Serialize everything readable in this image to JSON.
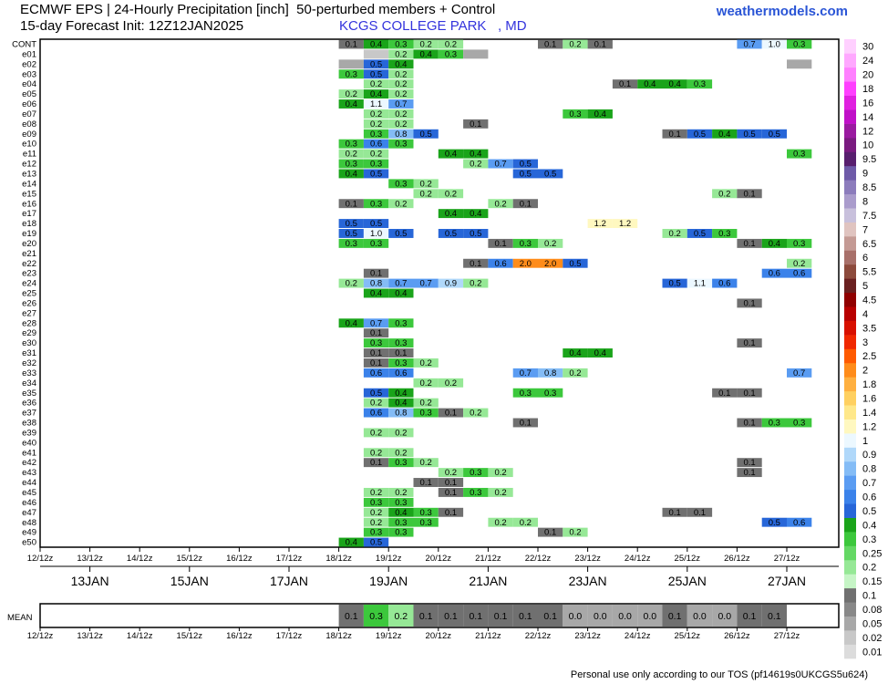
{
  "header": {
    "title_line1": "ECMWF EPS | 24-Hourly Precipitation [inch]  50-perturbed members + Control",
    "title_line2": "15-day Forecast Init: 12Z12JAN2025",
    "location": "KCGS COLLEGE PARK   , MD",
    "brand": "weathermodels.com"
  },
  "footer": "Personal use only according to our TOS (pf14619s0UKCGS5u624)",
  "chart_data": {
    "type": "heatmap",
    "title": "ECMWF EPS | 24-Hourly Precipitation [inch]  50-perturbed members + Control",
    "unit": "inch",
    "rows": [
      "CONT",
      "e01",
      "e02",
      "e03",
      "e04",
      "e05",
      "e06",
      "e07",
      "e08",
      "e09",
      "e10",
      "e11",
      "e12",
      "e13",
      "e14",
      "e15",
      "e16",
      "e17",
      "e18",
      "e19",
      "e20",
      "e21",
      "e22",
      "e23",
      "e24",
      "e25",
      "e26",
      "e27",
      "e28",
      "e29",
      "e30",
      "e31",
      "e32",
      "e33",
      "e34",
      "e35",
      "e36",
      "e37",
      "e38",
      "e39",
      "e40",
      "e41",
      "e42",
      "e43",
      "e44",
      "e45",
      "e46",
      "e47",
      "e48",
      "e49",
      "e50"
    ],
    "x_tick_labels": [
      "12/12z",
      "13/12z",
      "14/12z",
      "15/12z",
      "16/12z",
      "17/12z",
      "18/12z",
      "19/12z",
      "20/12z",
      "21/12z",
      "22/12z",
      "23/12z",
      "24/12z",
      "25/12z",
      "26/12z",
      "27/12z"
    ],
    "date_labels": [
      "13JAN",
      "15JAN",
      "17JAN",
      "19JAN",
      "21JAN",
      "23JAN",
      "25JAN",
      "27JAN"
    ],
    "time_step": "12h",
    "cells_note": "each cell: [row_index, time_index(0=12/12z, step 12h), value_inch, printed_label]",
    "cells": [
      [
        0,
        12.5,
        0.1,
        "0.1"
      ],
      [
        0,
        13.5,
        0.4,
        "0.4"
      ],
      [
        0,
        14.5,
        0.3,
        "0.3"
      ],
      [
        0,
        15.5,
        0.2,
        "0.2"
      ],
      [
        0,
        16.5,
        0.2,
        "0.2"
      ],
      [
        0,
        20.5,
        0.1,
        "0.1"
      ],
      [
        0,
        21.5,
        0.2,
        "0.2"
      ],
      [
        0,
        22.5,
        0.1,
        "0.1"
      ],
      [
        0,
        28.5,
        0.7,
        "0.7"
      ],
      [
        0,
        29.5,
        1.0,
        "1.0"
      ],
      [
        0,
        30.5,
        0.3,
        "0.3"
      ],
      [
        1,
        13.5,
        0.02,
        ""
      ],
      [
        1,
        14.5,
        0.2,
        "0.2"
      ],
      [
        1,
        15.5,
        0.4,
        "0.4"
      ],
      [
        1,
        16.5,
        0.3,
        "0.3"
      ],
      [
        1,
        17.5,
        0.05,
        ""
      ],
      [
        2,
        12.5,
        0.05,
        ""
      ],
      [
        2,
        13.5,
        0.5,
        "0.5"
      ],
      [
        2,
        14.5,
        0.4,
        "0.4"
      ],
      [
        2,
        30.5,
        0.06,
        ""
      ],
      [
        3,
        12.5,
        0.3,
        "0.3"
      ],
      [
        3,
        13.5,
        0.5,
        "0.5"
      ],
      [
        3,
        14.5,
        0.2,
        "0.2"
      ],
      [
        4,
        13.5,
        0.2,
        "0.2"
      ],
      [
        4,
        14.5,
        0.2,
        "0.2"
      ],
      [
        4,
        23.5,
        0.1,
        "0.1"
      ],
      [
        4,
        24.5,
        0.4,
        "0.4"
      ],
      [
        4,
        25.5,
        0.4,
        "0.4"
      ],
      [
        4,
        26.5,
        0.3,
        "0.3"
      ],
      [
        5,
        12.5,
        0.2,
        "0.2"
      ],
      [
        5,
        13.5,
        0.4,
        "0.4"
      ],
      [
        5,
        14.5,
        0.2,
        "0.2"
      ],
      [
        6,
        12.5,
        0.4,
        "0.4"
      ],
      [
        6,
        13.5,
        1.1,
        "1.1"
      ],
      [
        6,
        14.5,
        0.7,
        "0.7"
      ],
      [
        7,
        13.5,
        0.2,
        "0.2"
      ],
      [
        7,
        14.5,
        0.2,
        "0.2"
      ],
      [
        7,
        21.5,
        0.3,
        "0.3"
      ],
      [
        7,
        22.5,
        0.4,
        "0.4"
      ],
      [
        8,
        13.5,
        0.2,
        "0.2"
      ],
      [
        8,
        14.5,
        0.2,
        "0.2"
      ],
      [
        8,
        17.5,
        0.1,
        "0.1"
      ],
      [
        9,
        13.5,
        0.3,
        "0.3"
      ],
      [
        9,
        14.5,
        0.8,
        "0.8"
      ],
      [
        9,
        15.5,
        0.5,
        "0.5"
      ],
      [
        9,
        25.5,
        0.1,
        "0.1"
      ],
      [
        9,
        26.5,
        0.5,
        "0.5"
      ],
      [
        9,
        27.5,
        0.4,
        "0.4"
      ],
      [
        9,
        28.5,
        0.5,
        "0.5"
      ],
      [
        9,
        29.5,
        0.5,
        "0.5"
      ],
      [
        10,
        12.5,
        0.3,
        "0.3"
      ],
      [
        10,
        13.5,
        0.6,
        "0.6"
      ],
      [
        10,
        14.5,
        0.3,
        "0.3"
      ],
      [
        11,
        12.5,
        0.2,
        "0.2"
      ],
      [
        11,
        13.5,
        0.2,
        "0.2"
      ],
      [
        11,
        16.5,
        0.4,
        "0.4"
      ],
      [
        11,
        17.5,
        0.4,
        "0.4"
      ],
      [
        11,
        30.5,
        0.3,
        "0.3"
      ],
      [
        12,
        12.5,
        0.3,
        "0.3"
      ],
      [
        12,
        13.5,
        0.3,
        "0.3"
      ],
      [
        12,
        17.5,
        0.2,
        "0.2"
      ],
      [
        12,
        18.5,
        0.7,
        "0.7"
      ],
      [
        12,
        19.5,
        0.5,
        "0.5"
      ],
      [
        13,
        12.5,
        0.4,
        "0.4"
      ],
      [
        13,
        13.5,
        0.5,
        "0.5"
      ],
      [
        13,
        19.5,
        0.5,
        "0.5"
      ],
      [
        13,
        20.5,
        0.5,
        "0.5"
      ],
      [
        14,
        14.5,
        0.3,
        "0.3"
      ],
      [
        14,
        15.5,
        0.2,
        "0.2"
      ],
      [
        15,
        15.5,
        0.2,
        "0.2"
      ],
      [
        15,
        16.5,
        0.2,
        "0.2"
      ],
      [
        15,
        27.5,
        0.2,
        "0.2"
      ],
      [
        15,
        28.5,
        0.1,
        "0.1"
      ],
      [
        16,
        12.5,
        0.1,
        "0.1"
      ],
      [
        16,
        13.5,
        0.3,
        "0.3"
      ],
      [
        16,
        14.5,
        0.2,
        "0.2"
      ],
      [
        16,
        18.5,
        0.2,
        "0.2"
      ],
      [
        16,
        19.5,
        0.1,
        "0.1"
      ],
      [
        17,
        16.5,
        0.4,
        "0.4"
      ],
      [
        17,
        17.5,
        0.4,
        "0.4"
      ],
      [
        18,
        12.5,
        0.5,
        "0.5"
      ],
      [
        18,
        13.5,
        0.5,
        "0.5"
      ],
      [
        18,
        22.5,
        1.2,
        "1.2"
      ],
      [
        18,
        23.5,
        1.2,
        "1.2"
      ],
      [
        19,
        12.5,
        0.5,
        "0.5"
      ],
      [
        19,
        13.5,
        1.0,
        "1.0"
      ],
      [
        19,
        14.5,
        0.5,
        "0.5"
      ],
      [
        19,
        16.5,
        0.5,
        "0.5"
      ],
      [
        19,
        17.5,
        0.5,
        "0.5"
      ],
      [
        19,
        25.5,
        0.2,
        "0.2"
      ],
      [
        19,
        26.5,
        0.5,
        "0.5"
      ],
      [
        19,
        27.5,
        0.3,
        "0.3"
      ],
      [
        20,
        12.5,
        0.3,
        "0.3"
      ],
      [
        20,
        13.5,
        0.3,
        "0.3"
      ],
      [
        20,
        18.5,
        0.1,
        "0.1"
      ],
      [
        20,
        19.5,
        0.3,
        "0.3"
      ],
      [
        20,
        20.5,
        0.2,
        "0.2"
      ],
      [
        20,
        28.5,
        0.1,
        "0.1"
      ],
      [
        20,
        29.5,
        0.4,
        "0.4"
      ],
      [
        20,
        30.5,
        0.3,
        "0.3"
      ],
      [
        22,
        17.5,
        0.1,
        "0.1"
      ],
      [
        22,
        18.5,
        0.6,
        "0.6"
      ],
      [
        22,
        19.5,
        2.0,
        "2.0"
      ],
      [
        22,
        20.5,
        2.0,
        "2.0"
      ],
      [
        22,
        21.5,
        0.5,
        "0.5"
      ],
      [
        22,
        30.5,
        0.2,
        "0.2"
      ],
      [
        23,
        13.5,
        0.1,
        "0.1"
      ],
      [
        23,
        29.5,
        0.6,
        "0.6"
      ],
      [
        23,
        30.5,
        0.6,
        "0.6"
      ],
      [
        24,
        12.5,
        0.2,
        "0.2"
      ],
      [
        24,
        13.5,
        0.8,
        "0.8"
      ],
      [
        24,
        14.5,
        0.7,
        "0.7"
      ],
      [
        24,
        15.5,
        0.7,
        "0.7"
      ],
      [
        24,
        16.5,
        0.9,
        "0.9"
      ],
      [
        24,
        17.5,
        0.2,
        "0.2"
      ],
      [
        24,
        25.5,
        0.5,
        "0.5"
      ],
      [
        24,
        26.5,
        1.1,
        "1.1"
      ],
      [
        24,
        27.5,
        0.6,
        "0.6"
      ],
      [
        25,
        13.5,
        0.4,
        "0.4"
      ],
      [
        25,
        14.5,
        0.4,
        "0.4"
      ],
      [
        26,
        28.5,
        0.1,
        "0.1"
      ],
      [
        28,
        12.5,
        0.4,
        "0.4"
      ],
      [
        28,
        13.5,
        0.7,
        "0.7"
      ],
      [
        28,
        14.5,
        0.3,
        "0.3"
      ],
      [
        29,
        13.5,
        0.1,
        "0.1"
      ],
      [
        30,
        13.5,
        0.3,
        "0.3"
      ],
      [
        30,
        14.5,
        0.3,
        "0.3"
      ],
      [
        30,
        28.5,
        0.1,
        "0.1"
      ],
      [
        31,
        13.5,
        0.1,
        "0.1"
      ],
      [
        31,
        14.5,
        0.1,
        "0.1"
      ],
      [
        31,
        21.5,
        0.4,
        "0.4"
      ],
      [
        31,
        22.5,
        0.4,
        "0.4"
      ],
      [
        32,
        13.5,
        0.1,
        "0.1"
      ],
      [
        32,
        14.5,
        0.3,
        "0.3"
      ],
      [
        32,
        15.5,
        0.2,
        "0.2"
      ],
      [
        33,
        13.5,
        0.6,
        "0.6"
      ],
      [
        33,
        14.5,
        0.6,
        "0.6"
      ],
      [
        33,
        19.5,
        0.7,
        "0.7"
      ],
      [
        33,
        20.5,
        0.8,
        "0.8"
      ],
      [
        33,
        21.5,
        0.2,
        "0.2"
      ],
      [
        33,
        30.5,
        0.7,
        "0.7"
      ],
      [
        34,
        15.5,
        0.2,
        "0.2"
      ],
      [
        34,
        16.5,
        0.2,
        "0.2"
      ],
      [
        35,
        13.5,
        0.5,
        "0.5"
      ],
      [
        35,
        14.5,
        0.4,
        "0.4"
      ],
      [
        35,
        19.5,
        0.3,
        "0.3"
      ],
      [
        35,
        20.5,
        0.3,
        "0.3"
      ],
      [
        35,
        27.5,
        0.1,
        "0.1"
      ],
      [
        35,
        28.5,
        0.1,
        "0.1"
      ],
      [
        36,
        13.5,
        0.2,
        "0.2"
      ],
      [
        36,
        14.5,
        0.4,
        "0.4"
      ],
      [
        36,
        15.5,
        0.2,
        "0.2"
      ],
      [
        37,
        13.5,
        0.6,
        "0.6"
      ],
      [
        37,
        14.5,
        0.8,
        "0.8"
      ],
      [
        37,
        15.5,
        0.3,
        "0.3"
      ],
      [
        37,
        16.5,
        0.1,
        "0.1"
      ],
      [
        37,
        17.5,
        0.2,
        "0.2"
      ],
      [
        38,
        19.5,
        0.1,
        "0.1"
      ],
      [
        38,
        28.5,
        0.1,
        "0.1"
      ],
      [
        38,
        29.5,
        0.3,
        "0.3"
      ],
      [
        38,
        30.5,
        0.3,
        "0.3"
      ],
      [
        39,
        13.5,
        0.2,
        "0.2"
      ],
      [
        39,
        14.5,
        0.2,
        "0.2"
      ],
      [
        41,
        13.5,
        0.2,
        "0.2"
      ],
      [
        41,
        14.5,
        0.2,
        "0.2"
      ],
      [
        42,
        13.5,
        0.1,
        "0.1"
      ],
      [
        42,
        14.5,
        0.3,
        "0.3"
      ],
      [
        42,
        15.5,
        0.2,
        "0.2"
      ],
      [
        42,
        28.5,
        0.1,
        "0.1"
      ],
      [
        43,
        16.5,
        0.2,
        "0.2"
      ],
      [
        43,
        17.5,
        0.3,
        "0.3"
      ],
      [
        43,
        18.5,
        0.2,
        "0.2"
      ],
      [
        43,
        28.5,
        0.1,
        "0.1"
      ],
      [
        44,
        15.5,
        0.1,
        "0.1"
      ],
      [
        44,
        16.5,
        0.1,
        "0.1"
      ],
      [
        45,
        13.5,
        0.2,
        "0.2"
      ],
      [
        45,
        14.5,
        0.2,
        "0.2"
      ],
      [
        45,
        16.5,
        0.1,
        "0.1"
      ],
      [
        45,
        17.5,
        0.3,
        "0.3"
      ],
      [
        45,
        18.5,
        0.2,
        "0.2"
      ],
      [
        46,
        13.5,
        0.3,
        "0.3"
      ],
      [
        46,
        14.5,
        0.3,
        "0.3"
      ],
      [
        47,
        13.5,
        0.2,
        "0.2"
      ],
      [
        47,
        14.5,
        0.4,
        "0.4"
      ],
      [
        47,
        15.5,
        0.3,
        "0.3"
      ],
      [
        47,
        16.5,
        0.1,
        "0.1"
      ],
      [
        47,
        25.5,
        0.1,
        "0.1"
      ],
      [
        47,
        26.5,
        0.1,
        "0.1"
      ],
      [
        48,
        13.5,
        0.2,
        "0.2"
      ],
      [
        48,
        14.5,
        0.3,
        "0.3"
      ],
      [
        48,
        15.5,
        0.3,
        "0.3"
      ],
      [
        48,
        18.5,
        0.2,
        "0.2"
      ],
      [
        48,
        19.5,
        0.2,
        "0.2"
      ],
      [
        48,
        29.5,
        0.5,
        "0.5"
      ],
      [
        48,
        30.5,
        0.6,
        "0.6"
      ],
      [
        49,
        13.5,
        0.3,
        "0.3"
      ],
      [
        49,
        14.5,
        0.3,
        "0.3"
      ],
      [
        49,
        20.5,
        0.1,
        "0.1"
      ],
      [
        49,
        21.5,
        0.2,
        "0.2"
      ],
      [
        50,
        12.5,
        0.4,
        "0.4"
      ],
      [
        50,
        13.5,
        0.5,
        "0.5"
      ]
    ],
    "mean_row": {
      "label": "MEAN",
      "cells": [
        [
          12.5,
          0.1,
          "0.1"
        ],
        [
          13.5,
          0.3,
          "0.3"
        ],
        [
          14.5,
          0.2,
          "0.2"
        ],
        [
          15.5,
          0.1,
          "0.1"
        ],
        [
          16.5,
          0.1,
          "0.1"
        ],
        [
          17.5,
          0.1,
          "0.1"
        ],
        [
          18.5,
          0.1,
          "0.1"
        ],
        [
          19.5,
          0.1,
          "0.1"
        ],
        [
          20.5,
          0.1,
          "0.1"
        ],
        [
          21.5,
          0.0,
          "0.0"
        ],
        [
          22.5,
          0.0,
          "0.0"
        ],
        [
          23.5,
          0.0,
          "0.0"
        ],
        [
          24.5,
          0.0,
          "0.0"
        ],
        [
          25.5,
          0.1,
          "0.1"
        ],
        [
          26.5,
          0.0,
          "0.0"
        ],
        [
          27.5,
          0.0,
          "0.0"
        ],
        [
          28.5,
          0.1,
          "0.1"
        ],
        [
          29.5,
          0.1,
          "0.1"
        ]
      ]
    },
    "colorbar": {
      "levels": [
        "0.01",
        "0.02",
        "0.05",
        "0.08",
        "0.1",
        "0.15",
        "0.2",
        "0.25",
        "0.3",
        "0.4",
        "0.5",
        "0.6",
        "0.7",
        "0.8",
        "0.9",
        "1",
        "1.2",
        "1.4",
        "1.6",
        "1.8",
        "2",
        "2.5",
        "3",
        "3.5",
        "4",
        "4.5",
        "5",
        "5.5",
        "6",
        "6.5",
        "7",
        "7.5",
        "8",
        "8.5",
        "9",
        "9.5",
        "10",
        "12",
        "14",
        "16",
        "18",
        "20",
        "24",
        "30"
      ],
      "colors": [
        "#dcdcdc",
        "#c8c8c8",
        "#a8a8a8",
        "#888888",
        "#707070",
        "#c6f5c6",
        "#96e896",
        "#64d864",
        "#3cc83c",
        "#1aa41a",
        "#2766d8",
        "#3b82ea",
        "#5a9cf2",
        "#84bcf6",
        "#b0d8fa",
        "#ecf8ff",
        "#fff8c0",
        "#ffe88a",
        "#ffd060",
        "#ffb040",
        "#ff8c1a",
        "#ff5a00",
        "#f02800",
        "#d81000",
        "#b80000",
        "#900000",
        "#6a2020",
        "#8c4a3c",
        "#a8706a",
        "#c49a94",
        "#e0c4c0",
        "#c8c0dc",
        "#aa9ccc",
        "#8c7cbc",
        "#6e5aa8",
        "#581e6e",
        "#7a1a80",
        "#9a1aa0",
        "#c010c8",
        "#e020e0",
        "#ff40ff",
        "#ff80ff",
        "#ffa8ff",
        "#ffd0ff"
      ]
    }
  }
}
